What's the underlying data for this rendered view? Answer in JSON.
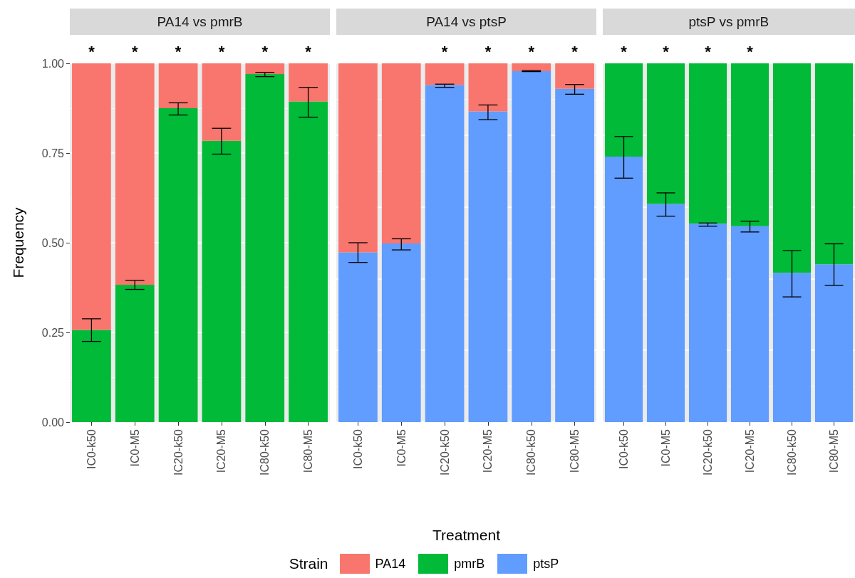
{
  "chart_data": [
    {
      "type": "bar",
      "title": "PA14 vs pmrB",
      "ylabel": "Frequency",
      "stacked": true,
      "grid": "y",
      "categories": [
        "IC0-k50",
        "IC0-M5",
        "IC20-k50",
        "IC20-M5",
        "IC80-k50",
        "IC80-M5"
      ],
      "ylim": [
        0,
        1
      ],
      "yticks": [
        {
          "value": 0,
          "label": "0.00"
        },
        {
          "value": 0.25,
          "label": "0.25"
        },
        {
          "value": 0.5,
          "label": "0.50"
        },
        {
          "value": 0.75,
          "label": "0.75"
        },
        {
          "value": 1,
          "label": "1.00"
        }
      ],
      "series": [
        {
          "name": "pmrB",
          "color": "#00ba38",
          "values": [
            0.257,
            0.383,
            0.875,
            0.784,
            0.97,
            0.894
          ],
          "errors": [
            [
              0.225,
              0.288
            ],
            [
              0.37,
              0.395
            ],
            [
              0.856,
              0.89
            ],
            [
              0.747,
              0.819
            ],
            [
              0.963,
              0.975
            ],
            [
              0.85,
              0.933
            ]
          ]
        },
        {
          "name": "PA14",
          "color": "#f8766d",
          "values": [
            0.743,
            0.617,
            0.125,
            0.216,
            0.03,
            0.106
          ]
        }
      ],
      "legend": "bottom",
      "annotations": [
        "*",
        "*",
        "*",
        "*",
        "*",
        "*"
      ]
    },
    {
      "type": "bar",
      "title": "PA14 vs ptsP",
      "xlabel": "Treatment",
      "stacked": true,
      "grid": "y",
      "tick_labels": "x",
      "legend": "bottom",
      "legend_title": "Strain",
      "categories": [
        "IC0-k50",
        "IC0-M5",
        "IC20-k50",
        "IC20-M5",
        "IC80-k50",
        "IC80-M5"
      ],
      "ylim": [
        0,
        1
      ],
      "series": [
        {
          "name": "ptsP",
          "color": "#619cff",
          "values": [
            0.473,
            0.498,
            0.94,
            0.866,
            0.978,
            0.929
          ],
          "errors": [
            [
              0.445,
              0.5
            ],
            [
              0.48,
              0.511
            ],
            [
              0.933,
              0.942
            ],
            [
              0.843,
              0.884
            ],
            [
              0.977,
              0.98
            ],
            [
              0.914,
              0.941
            ]
          ]
        },
        {
          "name": "PA14",
          "color": "#f8766d",
          "values": [
            0.527,
            0.502,
            0.06,
            0.134,
            0.022,
            0.071
          ]
        }
      ],
      "annotations": [
        "*",
        "*",
        "*",
        "*"
      ]
    },
    {
      "type": "bar",
      "title": "ptsP vs pmrB",
      "stacked": true,
      "grid": "y",
      "tick_labels": "x",
      "categories": [
        "IC0-k50",
        "IC0-M5",
        "IC20-k50",
        "IC20-M5",
        "IC80-k50",
        "IC80-M5"
      ],
      "ylim": [
        0,
        1
      ],
      "series": [
        {
          "name": "ptsP",
          "color": "#619cff",
          "values": [
            0.74,
            0.608,
            0.553,
            0.546,
            0.416,
            0.44
          ],
          "errors": [
            [
              0.68,
              0.796
            ],
            [
              0.574,
              0.639
            ],
            [
              0.546,
              0.555
            ],
            [
              0.53,
              0.56
            ],
            [
              0.349,
              0.478
            ],
            [
              0.381,
              0.497
            ]
          ]
        },
        {
          "name": "pmrB",
          "color": "#00ba38",
          "values": [
            0.26,
            0.392,
            0.447,
            0.454,
            0.584,
            0.56
          ]
        }
      ],
      "legend": "bottom",
      "annotations": [
        "*",
        "*",
        "*",
        "*"
      ]
    }
  ]
}
